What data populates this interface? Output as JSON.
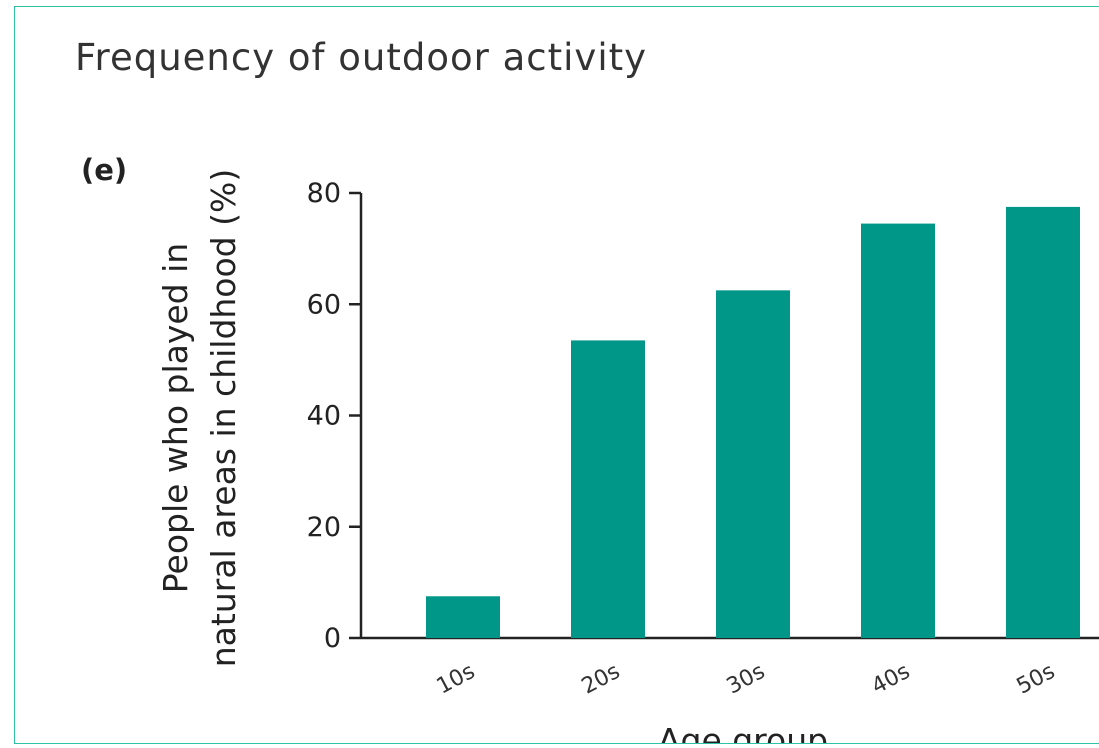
{
  "chart_data": {
    "type": "bar",
    "title": "Frequency of outdoor activity",
    "panel_label": "(e)",
    "categories": [
      "10s",
      "20s",
      "30s",
      "40s",
      "50s"
    ],
    "values": [
      7.5,
      53.5,
      62.5,
      74.5,
      77.5
    ],
    "ylabel_line1": "People who played in",
    "ylabel_line2": "natural areas in childhood (%)",
    "xlabel": "Age group",
    "ylim": [
      0,
      80
    ],
    "yticks": [
      0,
      20,
      40,
      60,
      80
    ],
    "ytick_labels": [
      "0",
      "20",
      "40",
      "60",
      "80"
    ],
    "bar_color": "#009688",
    "border_color": "#2fc3a6",
    "grid": false,
    "legend": "none"
  }
}
